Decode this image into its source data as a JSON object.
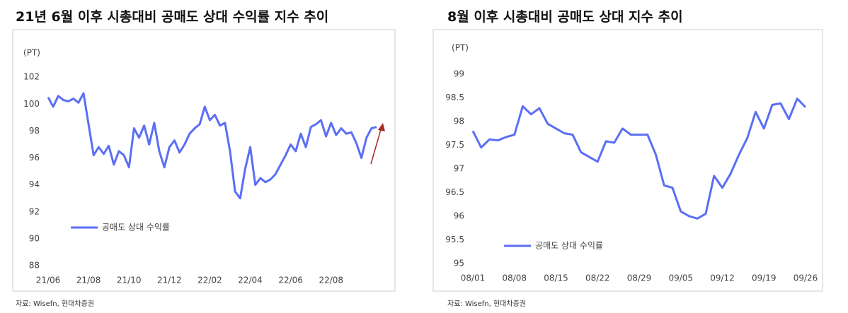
{
  "chart_data": [
    {
      "type": "line",
      "title": "21년 6월 이후 시총대비 공매도 상대 수익률 지수 추이",
      "y_label": "(PT)",
      "categories": [
        "21/06",
        null,
        null,
        null,
        null,
        null,
        null,
        null,
        "21/08",
        null,
        null,
        null,
        null,
        null,
        null,
        null,
        "21/10",
        null,
        null,
        null,
        null,
        null,
        null,
        null,
        "21/12",
        null,
        null,
        null,
        null,
        null,
        null,
        null,
        "22/02",
        null,
        null,
        null,
        null,
        null,
        null,
        null,
        "22/04",
        null,
        null,
        null,
        null,
        null,
        null,
        null,
        "22/06",
        null,
        null,
        null,
        null,
        null,
        null,
        null,
        "22/08",
        null,
        null,
        null,
        null,
        null,
        null,
        null,
        null,
        null
      ],
      "series": [
        {
          "name": "공매도 상대 수익률",
          "color": "#5b6ef5",
          "values": [
            100.5,
            99.8,
            100.6,
            100.3,
            100.2,
            100.4,
            100.1,
            100.8,
            98.5,
            96.2,
            96.8,
            96.3,
            96.9,
            95.5,
            96.5,
            96.2,
            95.3,
            98.2,
            97.5,
            98.4,
            97.0,
            98.6,
            96.5,
            95.3,
            96.8,
            97.3,
            96.4,
            97.0,
            97.8,
            98.2,
            98.5,
            99.8,
            98.8,
            99.2,
            98.4,
            98.6,
            96.5,
            93.5,
            93.0,
            95.2,
            96.8,
            94.0,
            94.5,
            94.2,
            94.4,
            94.8,
            95.5,
            96.2,
            97.0,
            96.5,
            97.8,
            96.8,
            98.3,
            98.5,
            98.8,
            97.6,
            98.6,
            97.7,
            98.2,
            97.8,
            97.9,
            97.1,
            96.0,
            97.5,
            98.2,
            98.3
          ]
        }
      ],
      "ylim": [
        88,
        104
      ],
      "yticks": [
        88,
        90,
        92,
        94,
        96,
        98,
        100,
        102
      ],
      "source": "자료: Wisefn, 현대차증권"
    },
    {
      "type": "line",
      "title": "8월 이후 시총대비 공매도 상대 지수 추이",
      "y_label": "(PT)",
      "categories": [
        "08/01",
        null,
        null,
        null,
        null,
        "08/08",
        null,
        null,
        null,
        null,
        "08/15",
        null,
        null,
        null,
        null,
        "08/22",
        null,
        null,
        null,
        null,
        "08/29",
        null,
        null,
        null,
        null,
        "09/05",
        null,
        null,
        null,
        null,
        "09/12",
        null,
        null,
        null,
        null,
        "09/19",
        null,
        null,
        null,
        null,
        "09/26"
      ],
      "series": [
        {
          "name": "공매도 상대 수익률",
          "color": "#5b6ef5",
          "values": [
            97.8,
            97.45,
            97.62,
            97.6,
            97.67,
            97.72,
            98.32,
            98.15,
            98.28,
            97.95,
            97.85,
            97.75,
            97.72,
            97.35,
            97.25,
            97.15,
            97.58,
            97.55,
            97.85,
            97.72,
            97.72,
            97.72,
            97.3,
            96.65,
            96.6,
            96.1,
            96.0,
            95.95,
            96.05,
            96.85,
            96.6,
            96.9,
            97.3,
            97.65,
            98.2,
            97.85,
            98.35,
            98.38,
            98.05,
            98.48,
            98.3
          ]
        }
      ],
      "ylim": [
        95,
        99.4
      ],
      "yticks": [
        95,
        95.5,
        96,
        96.5,
        97,
        97.5,
        98,
        98.5,
        99
      ],
      "source": "자료: Wisefn, 현대차증권"
    }
  ]
}
